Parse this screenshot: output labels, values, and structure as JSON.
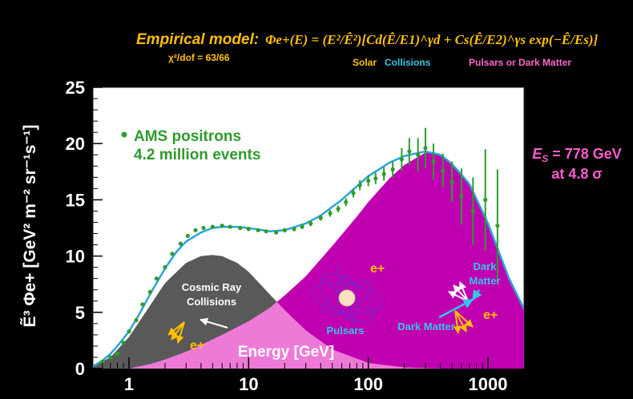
{
  "header": {
    "model_label": "Empirical model:",
    "formula": "Φe+(E) = (E²/Ê²)[Cd(Ê/E1)^γd + Cs(Ê/E2)^γs exp(−Ê/Es)]",
    "chi2": "χ²/dof = 63/66",
    "term_solar": "Solar",
    "term_collisions": "Collisions",
    "term_pulsars_dm": "Pulsars or Dark Matter"
  },
  "annotations": {
    "es_line1": "E",
    "es_sub": "S",
    "es_value": " = 778 GeV",
    "es_line2": "at 4.8 σ",
    "cosmic_ray_1": "Cosmic Ray",
    "cosmic_ray_2": "Collisions",
    "eplus": "e+",
    "pulsars": "Pulsars",
    "dark_matter_top_1": "Dark",
    "dark_matter_top_2": "Matter",
    "dark_matter_bottom": "Dark Matter",
    "legend_line1": "AMS positrons",
    "legend_line2": "4.2 million events"
  },
  "colors": {
    "background": "#000000",
    "plot_bg": "#ffffff",
    "collision_fill": "#595959",
    "source_fill": "#c000b0",
    "overlap_fill": "#ee7ad8",
    "fit_line": "#2aa6d6",
    "data_points": "#2e9b2e",
    "title_yellow": "#ffc000",
    "label_cyan": "#35c6e8",
    "label_pink": "#ff66cc",
    "es_pink": "#ff5bd0"
  },
  "chart_data": {
    "type": "scatter",
    "xscale": "log",
    "xlim": [
      0.5,
      2000
    ],
    "ylim": [
      0,
      25
    ],
    "xticks": [
      1,
      10,
      100,
      1000
    ],
    "xticklabels": [
      "1",
      "10",
      "100",
      "1000"
    ],
    "yticks": [
      0,
      5,
      10,
      15,
      20,
      25
    ],
    "yticklabels": [
      "0",
      "5",
      "10",
      "15",
      "20",
      "25"
    ],
    "xlabel": "Energy [GeV]",
    "ylabel": "Ẽ³ Φe+ [GeV² m⁻² sr⁻¹s⁻¹]",
    "series": [
      {
        "name": "AMS positrons",
        "x": [
          0.6,
          0.7,
          0.8,
          0.9,
          1.0,
          1.15,
          1.3,
          1.5,
          1.7,
          2.0,
          2.3,
          2.7,
          3.1,
          3.6,
          4.2,
          5.0,
          6.0,
          7.0,
          8.5,
          10,
          12,
          14,
          17,
          20,
          24,
          28,
          33,
          40,
          48,
          56,
          65,
          75,
          85,
          100,
          115,
          135,
          160,
          190,
          220,
          260,
          300,
          350,
          420,
          500,
          600,
          750,
          950,
          1200
        ],
        "y": [
          0.6,
          1.0,
          1.3,
          2.3,
          3.3,
          4.3,
          5.7,
          6.8,
          8.0,
          9.0,
          10.2,
          11.1,
          11.8,
          12.3,
          12.5,
          12.6,
          12.7,
          12.6,
          12.5,
          12.4,
          12.3,
          12.2,
          12.1,
          12.3,
          12.4,
          12.6,
          12.9,
          13.4,
          13.8,
          14.2,
          14.8,
          15.6,
          16.3,
          16.7,
          16.9,
          17.3,
          17.7,
          18.6,
          19.3,
          19.0,
          19.6,
          18.4,
          17.6,
          16.6,
          15.3,
          14.0,
          15.0,
          12.7
        ],
        "yerr": [
          0.15,
          0.15,
          0.15,
          0.15,
          0.15,
          0.15,
          0.15,
          0.15,
          0.15,
          0.15,
          0.15,
          0.15,
          0.15,
          0.15,
          0.15,
          0.15,
          0.15,
          0.15,
          0.15,
          0.15,
          0.15,
          0.15,
          0.15,
          0.2,
          0.2,
          0.2,
          0.25,
          0.25,
          0.3,
          0.3,
          0.35,
          0.4,
          0.45,
          0.5,
          0.5,
          0.6,
          0.7,
          1.0,
          1.2,
          1.5,
          1.8,
          1.6,
          1.5,
          1.8,
          2.5,
          3.0,
          4.5,
          5.0
        ]
      }
    ],
    "model_curves": [
      {
        "name": "Solar + Collisions + Pulsars or Dark Matter",
        "x": [
          0.5,
          0.6,
          0.7,
          0.8,
          1.0,
          1.2,
          1.5,
          2.0,
          2.5,
          3.0,
          4.0,
          5.0,
          6.0,
          8.0,
          10,
          15,
          20,
          30,
          40,
          60,
          80,
          100,
          150,
          200,
          300,
          400,
          500,
          700,
          1000,
          1500,
          2000
        ],
        "y": [
          0.2,
          0.7,
          1.3,
          2.0,
          3.3,
          4.7,
          6.6,
          8.9,
          10.4,
          11.3,
          12.1,
          12.5,
          12.6,
          12.6,
          12.5,
          12.2,
          12.3,
          12.9,
          13.6,
          15.0,
          16.2,
          17.1,
          18.3,
          18.9,
          19.3,
          19.0,
          18.2,
          16.4,
          12.9,
          8.0,
          5.3
        ]
      },
      {
        "name": "Collisions",
        "x": [
          0.5,
          0.7,
          1.0,
          1.5,
          2.0,
          3.0,
          4.0,
          5.0,
          6.0,
          8.0,
          10,
          15,
          20,
          30,
          50,
          100,
          200,
          400
        ],
        "y": [
          0.2,
          1.0,
          2.8,
          5.6,
          7.6,
          9.4,
          10.0,
          10.1,
          10.0,
          9.4,
          8.6,
          6.6,
          5.2,
          3.4,
          1.7,
          0.5,
          0.1,
          0.0
        ]
      },
      {
        "name": "Pulsars or Dark Matter",
        "x": [
          1.0,
          1.5,
          2.0,
          3.0,
          4.0,
          6.0,
          10,
          15,
          20,
          30,
          50,
          80,
          100,
          150,
          200,
          300,
          400,
          500,
          700,
          1000,
          1500,
          2000
        ],
        "y": [
          0.0,
          0.4,
          0.8,
          1.5,
          2.1,
          3.0,
          4.2,
          5.4,
          6.5,
          8.2,
          10.9,
          13.5,
          14.8,
          16.9,
          18.1,
          19.2,
          19.0,
          18.2,
          16.4,
          12.9,
          8.0,
          5.3
        ]
      }
    ]
  }
}
